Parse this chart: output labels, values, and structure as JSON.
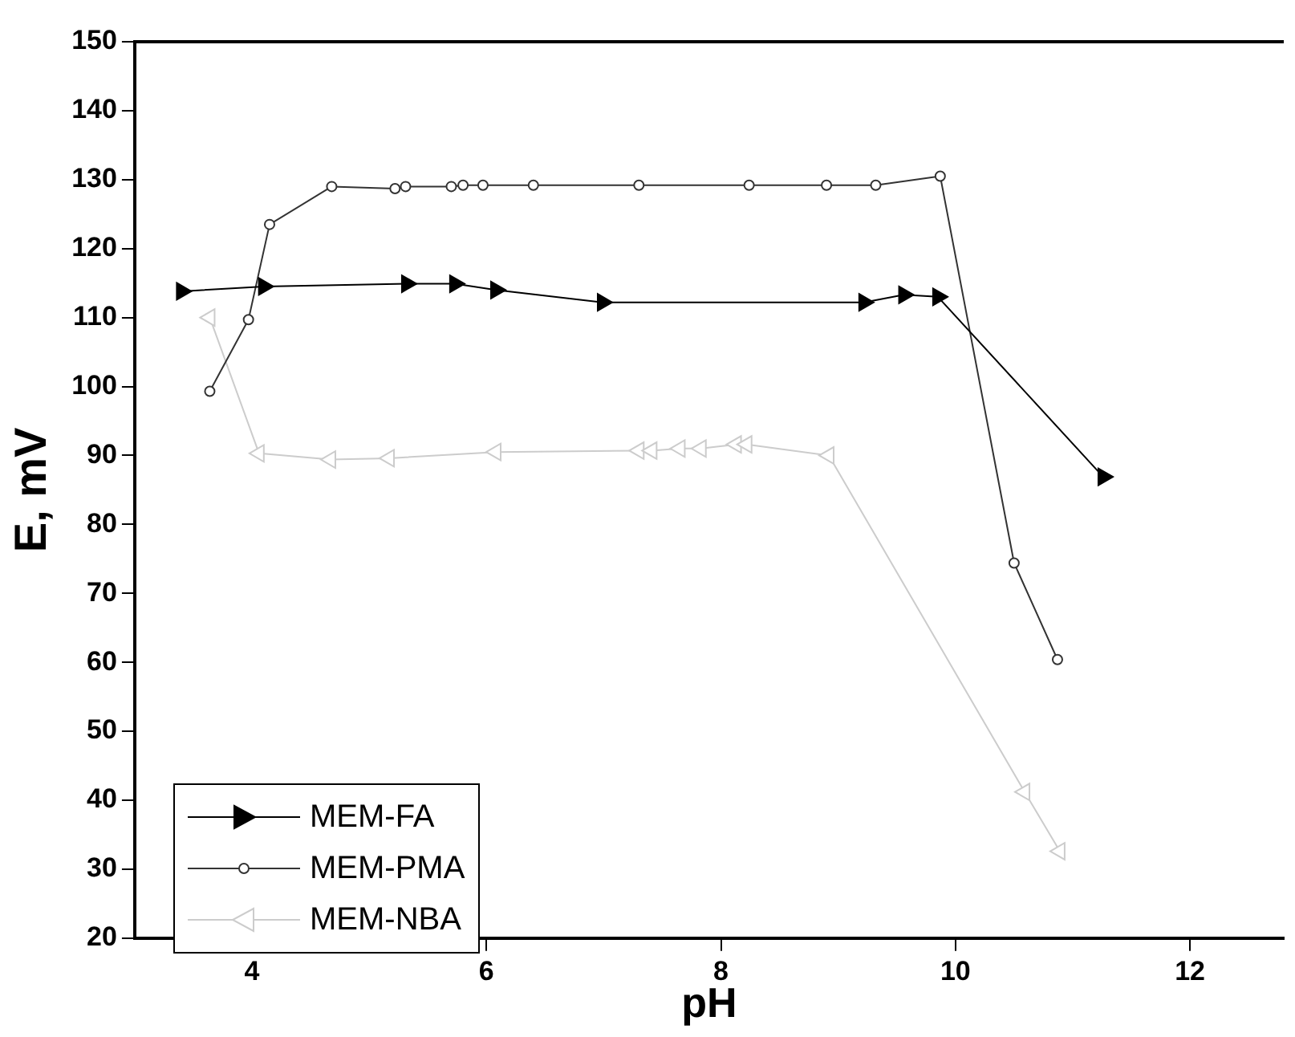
{
  "chart_data": {
    "type": "line",
    "xlabel": "pH",
    "ylabel": "E, mV",
    "xlim": [
      3,
      12.8
    ],
    "xticks": [
      4,
      6,
      8,
      10,
      12
    ],
    "ylim": [
      20,
      150
    ],
    "yticks": [
      20,
      30,
      40,
      50,
      60,
      70,
      80,
      90,
      100,
      110,
      120,
      130,
      140,
      150
    ],
    "grid": false,
    "legend": "bottom left",
    "line_style": "solid",
    "series": [
      {
        "name": "MEM-FA",
        "color": "#000000",
        "marker": "triangle-right",
        "x": [
          3.4,
          4.1,
          5.32,
          5.73,
          6.08,
          6.99,
          9.22,
          9.56,
          9.85,
          11.26
        ],
        "values": [
          113.8,
          114.5,
          114.9,
          114.9,
          114,
          112.2,
          112.2,
          113.3,
          113,
          86.9
        ]
      },
      {
        "name": "MEM-PMA",
        "color": "#333333",
        "marker": "circle",
        "x": [
          3.64,
          3.97,
          4.15,
          4.68,
          5.22,
          5.31,
          5.7,
          5.8,
          5.97,
          6.4,
          7.3,
          8.24,
          8.9,
          9.32,
          9.87,
          10.5,
          10.87
        ],
        "values": [
          99.3,
          109.7,
          123.5,
          129,
          128.7,
          129,
          129,
          129.2,
          129.2,
          129.2,
          129.2,
          129.2,
          129.2,
          129.2,
          130.5,
          74.4,
          60.4
        ]
      },
      {
        "name": "MEM-NBA",
        "color": "#cccccc",
        "marker": "triangle-left",
        "x": [
          3.64,
          4.06,
          4.67,
          5.17,
          6.08,
          7.3,
          7.41,
          7.65,
          7.83,
          8.13,
          8.22,
          8.92,
          10.59,
          10.89
        ],
        "values": [
          110,
          90.3,
          89.4,
          89.6,
          90.5,
          90.7,
          90.7,
          91,
          91,
          91.6,
          91.6,
          90,
          41.2,
          32.6
        ]
      }
    ]
  }
}
